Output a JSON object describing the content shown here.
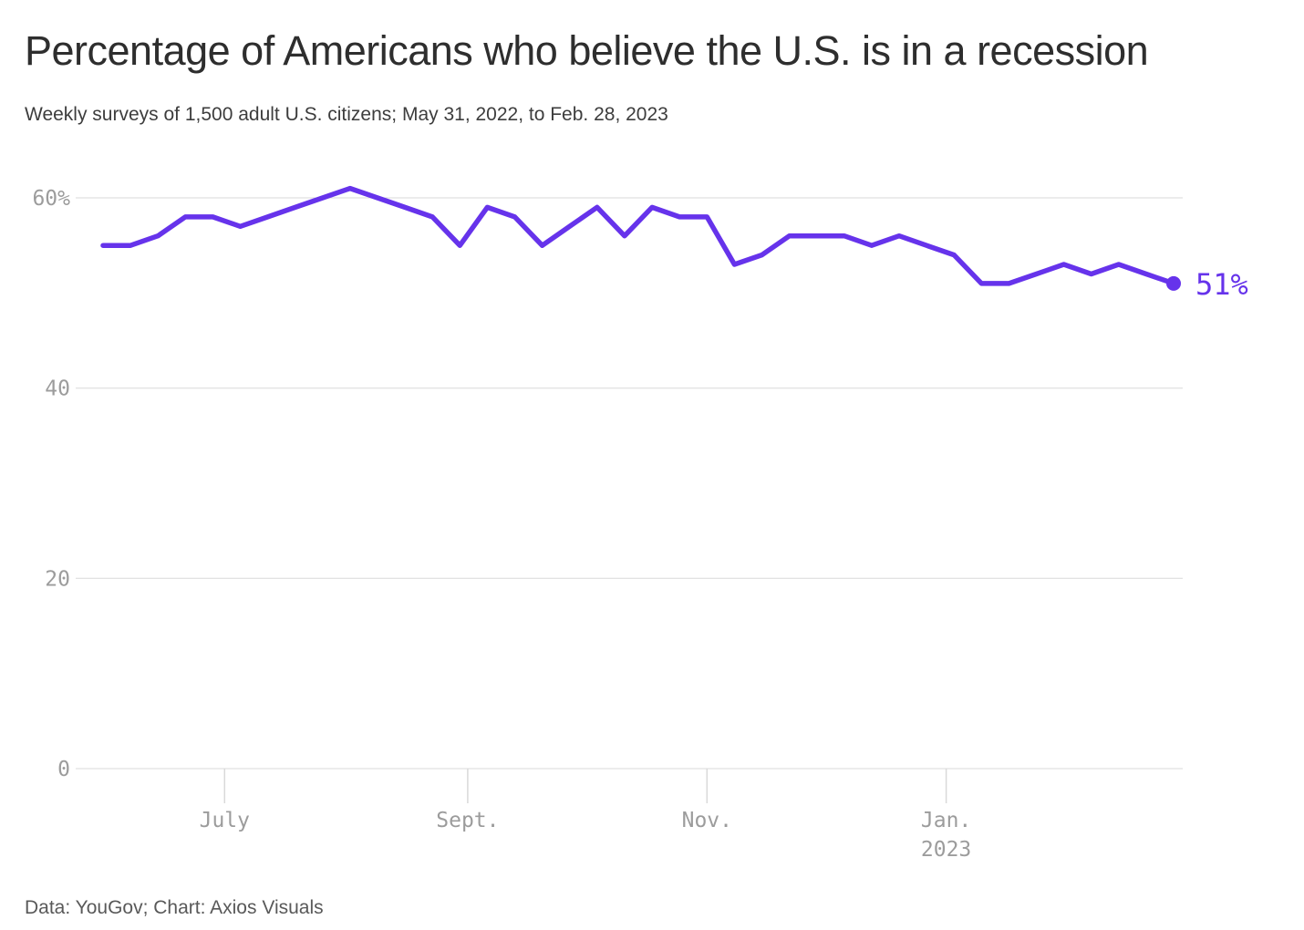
{
  "header": {
    "title": "Percentage of Americans who believe the U.S. is in a recession",
    "subtitle": "Weekly surveys of 1,500 adult U.S. citizens; May 31, 2022, to Feb. 28, 2023"
  },
  "footer": {
    "credit": "Data: YouGov; Chart: Axios Visuals"
  },
  "chart_data": {
    "type": "line",
    "title": "Percentage of Americans who believe the U.S. is in a recession",
    "xlabel": "",
    "ylabel": "",
    "ylim": [
      0,
      62
    ],
    "grid": "horizontal",
    "legend": false,
    "line_color": "#6633EB",
    "axis_text_color": "#9c9c9c",
    "grid_color": "#d9d9d9",
    "end_label": "51%",
    "x": [
      "2022-05-31",
      "2022-06-07",
      "2022-06-14",
      "2022-06-21",
      "2022-06-28",
      "2022-07-05",
      "2022-07-12",
      "2022-07-19",
      "2022-07-26",
      "2022-08-02",
      "2022-08-09",
      "2022-08-16",
      "2022-08-23",
      "2022-08-30",
      "2022-09-06",
      "2022-09-13",
      "2022-09-20",
      "2022-09-27",
      "2022-10-04",
      "2022-10-11",
      "2022-10-18",
      "2022-10-25",
      "2022-11-01",
      "2022-11-08",
      "2022-11-15",
      "2022-11-22",
      "2022-11-29",
      "2022-12-06",
      "2022-12-13",
      "2022-12-20",
      "2022-12-27",
      "2023-01-03",
      "2023-01-10",
      "2023-01-17",
      "2023-01-24",
      "2023-01-31",
      "2023-02-07",
      "2023-02-14",
      "2023-02-21",
      "2023-02-28"
    ],
    "series": [
      {
        "name": "Believe the U.S. is in a recession (%)",
        "values": [
          55,
          55,
          56,
          58,
          58,
          57,
          58,
          59,
          60,
          61,
          60,
          59,
          58,
          55,
          59,
          58,
          55,
          57,
          59,
          56,
          59,
          58,
          58,
          53,
          54,
          56,
          56,
          56,
          55,
          56,
          55,
          54,
          51,
          51,
          52,
          53,
          52,
          53,
          52,
          51
        ]
      }
    ],
    "y_ticks": [
      {
        "value": 60,
        "label": "60%"
      },
      {
        "value": 40,
        "label": "40"
      },
      {
        "value": 20,
        "label": "20"
      },
      {
        "value": 0,
        "label": "0"
      }
    ],
    "x_ticks": [
      {
        "label": "July",
        "sublabel": "",
        "index": 4.4286
      },
      {
        "label": "Sept.",
        "sublabel": "",
        "index": 13.2857
      },
      {
        "label": "Nov.",
        "sublabel": "",
        "index": 22.0
      },
      {
        "label": "Jan.",
        "sublabel": "2023",
        "index": 30.7143
      }
    ]
  }
}
